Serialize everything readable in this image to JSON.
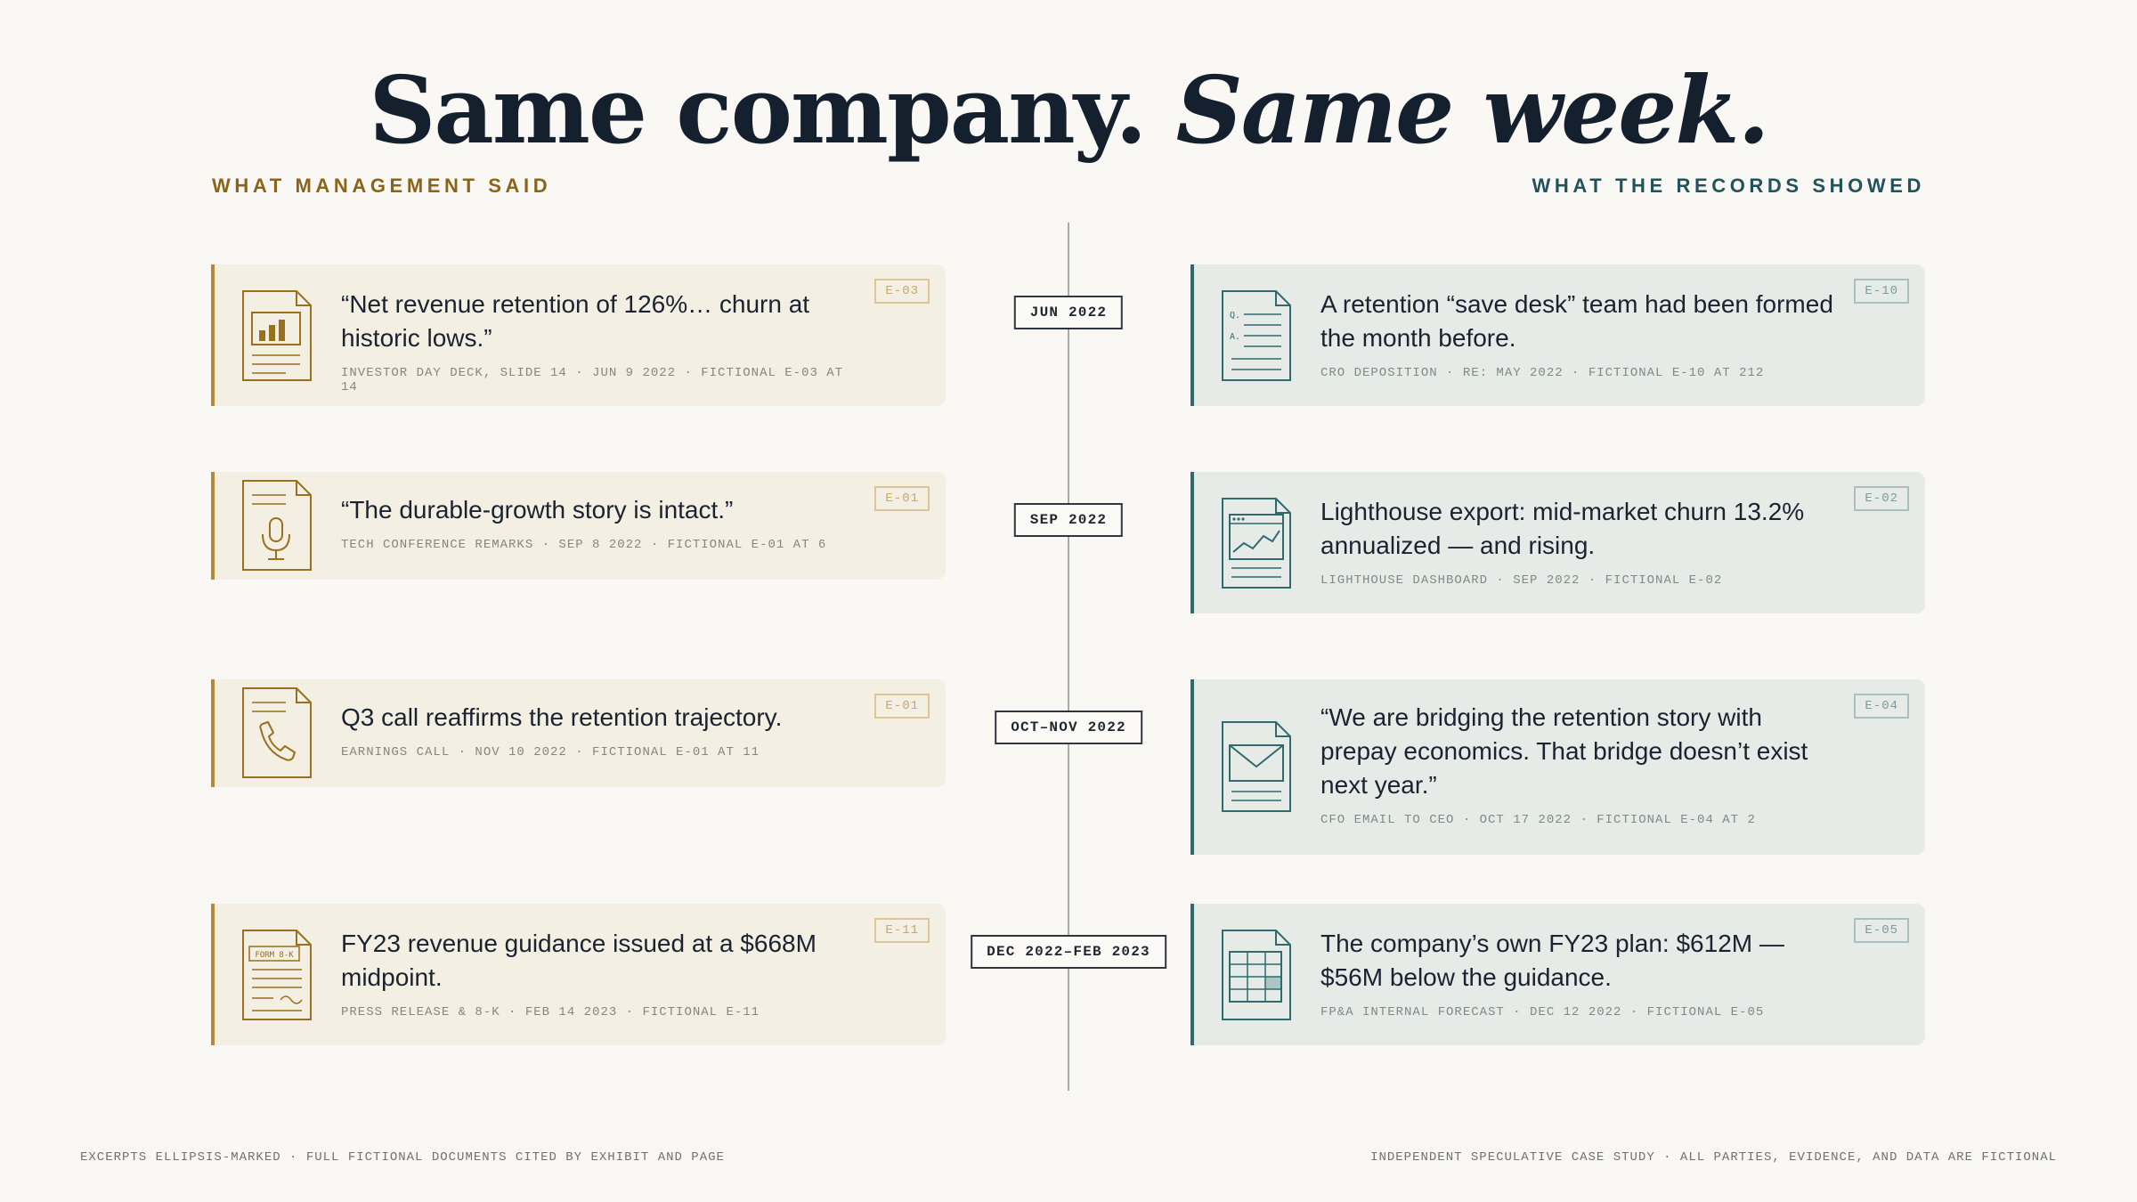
{
  "title": {
    "part1": "Same company.",
    "part2": "Same week."
  },
  "columns": {
    "left": "WHAT MANAGEMENT SAID",
    "right": "WHAT THE RECORDS SHOWED"
  },
  "rows": [
    {
      "date": "JUN 2022",
      "mgmt": {
        "icon": "chart-document-icon",
        "quote": "“Net revenue retention of 126%… churn at historic lows.”",
        "cite": "INVESTOR DAY DECK, SLIDE 14 · JUN 9 2022 · FICTIONAL E-03 AT 14",
        "badge": "E-03"
      },
      "rec": {
        "icon": "deposition-document-icon",
        "quote": "A retention “save desk” team had been formed the month before.",
        "cite": "CRO DEPOSITION · RE: MAY 2022 · FICTIONAL E-10 AT 212",
        "badge": "E-10"
      }
    },
    {
      "date": "SEP 2022",
      "mgmt": {
        "icon": "microphone-document-icon",
        "quote": "“The durable-growth story is intact.”",
        "cite": "TECH CONFERENCE REMARKS · SEP 8 2022 · FICTIONAL E-01 AT 6",
        "badge": "E-01"
      },
      "rec": {
        "icon": "dashboard-document-icon",
        "quote": "Lighthouse export: mid-market churn 13.2% annualized — and rising.",
        "cite": "LIGHTHOUSE DASHBOARD · SEP 2022 · FICTIONAL E-02",
        "badge": "E-02"
      }
    },
    {
      "date": "OCT–NOV 2022",
      "mgmt": {
        "icon": "phone-document-icon",
        "quote": "Q3 call reaffirms the retention trajectory.",
        "cite": "EARNINGS CALL · NOV 10 2022 · FICTIONAL E-01 AT 11",
        "badge": "E-01"
      },
      "rec": {
        "icon": "email-document-icon",
        "quote": "“We are bridging the retention story with prepay economics. That bridge doesn’t exist next year.”",
        "cite": "CFO EMAIL TO CEO · OCT 17 2022 · FICTIONAL E-04 AT 2",
        "badge": "E-04"
      }
    },
    {
      "date": "DEC 2022–FEB 2023",
      "mgmt": {
        "icon": "form-8k-document-icon",
        "form_label": "FORM 8-K",
        "quote": "FY23 revenue guidance issued at a $668M midpoint.",
        "cite": "PRESS RELEASE & 8-K · FEB 14 2023 · FICTIONAL E-11",
        "badge": "E-11"
      },
      "rec": {
        "icon": "spreadsheet-document-icon",
        "quote": "The company’s own FY23 plan: $612M — $56M below the guidance.",
        "cite": "FP&A INTERNAL FORECAST · DEC 12 2022 · FICTIONAL E-05",
        "badge": "E-05"
      }
    }
  ],
  "footer": {
    "left": "EXCERPTS ELLIPSIS-MARKED · FULL FICTIONAL DOCUMENTS CITED BY EXHIBIT AND PAGE",
    "right": "INDEPENDENT SPECULATIVE CASE STUDY · ALL PARTIES, EVIDENCE, AND DATA ARE FICTIONAL"
  },
  "colors": {
    "management_accent": "#b38a35",
    "records_accent": "#2f6b6d",
    "title": "#15202e"
  }
}
